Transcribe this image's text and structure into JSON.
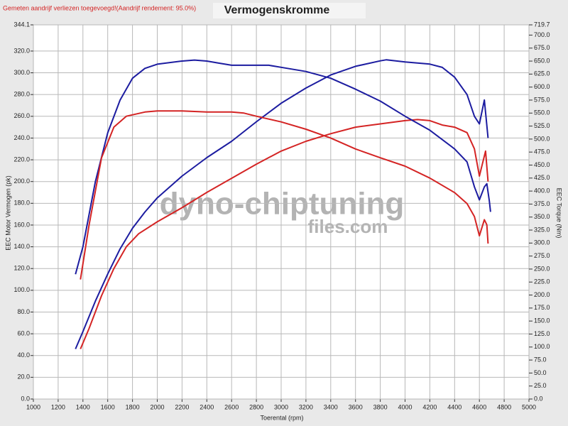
{
  "chart_data": {
    "type": "line",
    "title": "Vermogenskromme",
    "note": "Gemeten aandrijf verliezen toegevoegd!(Aandrijf rendement: 95.0%)",
    "watermark": [
      "dyno-chiptuning",
      "files.com"
    ],
    "x_label": "Toerental (rpm)",
    "y_label": "EEC Motor Vermogen (pk)",
    "y2_label": "EEC Torque (Nm)",
    "grid": true,
    "xlim": [
      1000,
      5000
    ],
    "xticks": [
      1000,
      1200,
      1400,
      1600,
      1800,
      2000,
      2200,
      2400,
      2600,
      2800,
      3000,
      3200,
      3400,
      3600,
      3800,
      4000,
      4200,
      4400,
      4600,
      4800,
      5000
    ],
    "ylim": [
      0,
      344.1
    ],
    "yticks": [
      {
        "value": 0,
        "label": "0.0"
      },
      {
        "value": 20,
        "label": "20.0"
      },
      {
        "value": 40,
        "label": "40.0"
      },
      {
        "value": 60,
        "label": "60.0"
      },
      {
        "value": 80,
        "label": "80.0"
      },
      {
        "value": 100,
        "label": "100.0"
      },
      {
        "value": 120,
        "label": "120.0"
      },
      {
        "value": 140,
        "label": "140.0"
      },
      {
        "value": 160,
        "label": "160.0"
      },
      {
        "value": 180,
        "label": "180.0"
      },
      {
        "value": 200,
        "label": "200.0"
      },
      {
        "value": 220,
        "label": "220.0"
      },
      {
        "value": 240,
        "label": "240.0"
      },
      {
        "value": 260,
        "label": "260.0"
      },
      {
        "value": 280,
        "label": "280.0"
      },
      {
        "value": 300,
        "label": "300.0"
      },
      {
        "value": 320,
        "label": "320.0"
      },
      344.1
    ],
    "y2lim": [
      0,
      719.7
    ],
    "y2ticks": [
      {
        "value": 0,
        "label": "0.0"
      },
      {
        "value": 25,
        "label": "25.0"
      },
      {
        "value": 50,
        "label": "50.0"
      },
      {
        "value": 75,
        "label": "75.0"
      },
      {
        "value": 100,
        "label": "100.0"
      },
      {
        "value": 125,
        "label": "125.0"
      },
      {
        "value": 150,
        "label": "150.0"
      },
      {
        "value": 175,
        "label": "175.0"
      },
      {
        "value": 200,
        "label": "200.0"
      },
      {
        "value": 225,
        "label": "225.0"
      },
      {
        "value": 250,
        "label": "250.0"
      },
      {
        "value": 275,
        "label": "275.0"
      },
      {
        "value": 300,
        "label": "300.0"
      },
      {
        "value": 325,
        "label": "325.0"
      },
      {
        "value": 350,
        "label": "350.0"
      },
      {
        "value": 375,
        "label": "375.0"
      },
      {
        "value": 400,
        "label": "400.0"
      },
      {
        "value": 425,
        "label": "425.0"
      },
      {
        "value": 450,
        "label": "450.0"
      },
      {
        "value": 475,
        "label": "475.0"
      },
      {
        "value": 500,
        "label": "500.0"
      },
      {
        "value": 525,
        "label": "525.0"
      },
      {
        "value": 550,
        "label": "550.0"
      },
      {
        "value": 575,
        "label": "575.0"
      },
      {
        "value": 600,
        "label": "600.0"
      },
      {
        "value": 625,
        "label": "625.0"
      },
      {
        "value": 650,
        "label": "650.0"
      },
      {
        "value": 675,
        "label": "675.0"
      },
      {
        "value": 700,
        "label": "700.0"
      },
      719.7
    ],
    "series": [
      {
        "color": "#1c1ca0",
        "axis": "y",
        "x": [
          1340,
          1400,
          1500,
          1600,
          1700,
          1800,
          1900,
          2000,
          2200,
          2400,
          2600,
          2800,
          3000,
          3200,
          3400,
          3600,
          3800,
          3850,
          4000,
          4200,
          4300,
          4400,
          4500,
          4560,
          4600,
          4640,
          4670
        ],
        "values": [
          46,
          62,
          90,
          115,
          138,
          157,
          172,
          185,
          205,
          222,
          237,
          255,
          272,
          286,
          298,
          306,
          311,
          312,
          310,
          308,
          305,
          296,
          280,
          260,
          253,
          275,
          240
        ]
      },
      {
        "color": "#d42424",
        "axis": "y",
        "x": [
          1380,
          1450,
          1550,
          1650,
          1750,
          1850,
          2000,
          2200,
          2400,
          2600,
          2800,
          3000,
          3200,
          3400,
          3600,
          3800,
          4000,
          4100,
          4200,
          4300,
          4400,
          4500,
          4560,
          4600,
          4650,
          4670
        ],
        "values": [
          46,
          65,
          95,
          120,
          140,
          152,
          163,
          176,
          190,
          203,
          216,
          228,
          237,
          244,
          250,
          253,
          256,
          257,
          256,
          252,
          250,
          245,
          230,
          205,
          228,
          200
        ]
      },
      {
        "color": "#1c1ca0",
        "axis": "y2",
        "x": [
          1340,
          1400,
          1500,
          1600,
          1700,
          1800,
          1900,
          2000,
          2200,
          2300,
          2400,
          2500,
          2600,
          2800,
          2900,
          3000,
          3200,
          3400,
          3600,
          3800,
          4000,
          4200,
          4400,
          4500,
          4560,
          4600,
          4640,
          4660,
          4680,
          4690
        ],
        "values": [
          240,
          293,
          418,
          512,
          575,
          617,
          636,
          644,
          650,
          652,
          650,
          646,
          642,
          642,
          642,
          638,
          630,
          617,
          596,
          573,
          544,
          517,
          481,
          456,
          408,
          383,
          408,
          414,
          381,
          360
        ]
      },
      {
        "color": "#d42424",
        "axis": "y2",
        "x": [
          1380,
          1450,
          1550,
          1650,
          1750,
          1900,
          2000,
          2200,
          2400,
          2600,
          2700,
          2800,
          3000,
          3200,
          3400,
          3600,
          3800,
          4000,
          4200,
          4400,
          4500,
          4560,
          4600,
          4640,
          4660,
          4670
        ],
        "values": [
          230,
          335,
          464,
          523,
          544,
          552,
          554,
          554,
          552,
          552,
          550,
          544,
          533,
          519,
          502,
          481,
          464,
          448,
          425,
          397,
          376,
          351,
          314,
          345,
          335,
          299
        ]
      }
    ]
  }
}
